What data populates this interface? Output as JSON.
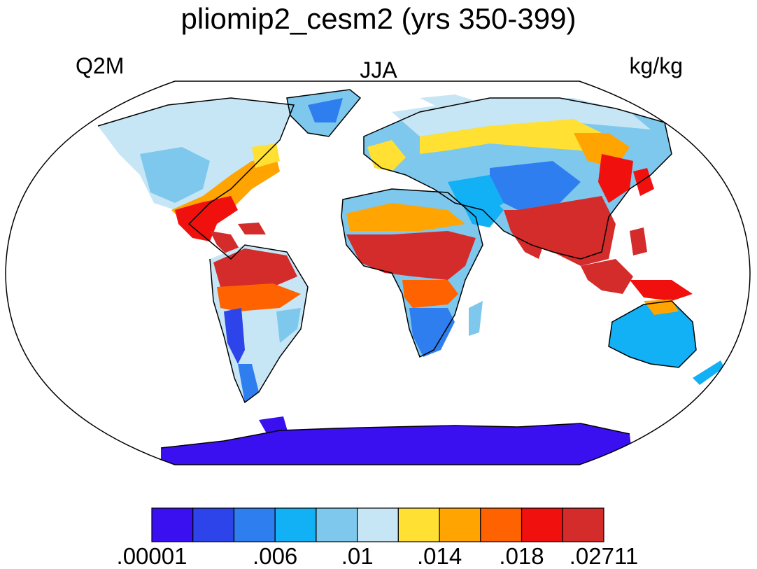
{
  "map": {
    "title": "pliomip2_cesm2 (yrs 350-399)",
    "left_label": "Q2M",
    "center_label": "JJA",
    "right_label": "kg/kg",
    "projection": "robinson",
    "field_colors": {
      "land_default": "#9fd6f0"
    }
  },
  "colorbar": {
    "colors": [
      "#3a10f0",
      "#2c44ea",
      "#2f7ef0",
      "#12b0f5",
      "#7ec8ed",
      "#c7e6f5",
      "#ffe033",
      "#ffa400",
      "#ff6200",
      "#f0100e",
      "#d42b2b"
    ],
    "labels": [
      {
        "text": ".00001",
        "at_edge": 0
      },
      {
        "text": ".006",
        "at_edge": 3
      },
      {
        "text": ".01",
        "at_edge": 5
      },
      {
        "text": ".014",
        "at_edge": 7
      },
      {
        "text": ".018",
        "at_edge": 9
      },
      {
        "text": ".02711",
        "at_edge": 11
      }
    ]
  }
}
